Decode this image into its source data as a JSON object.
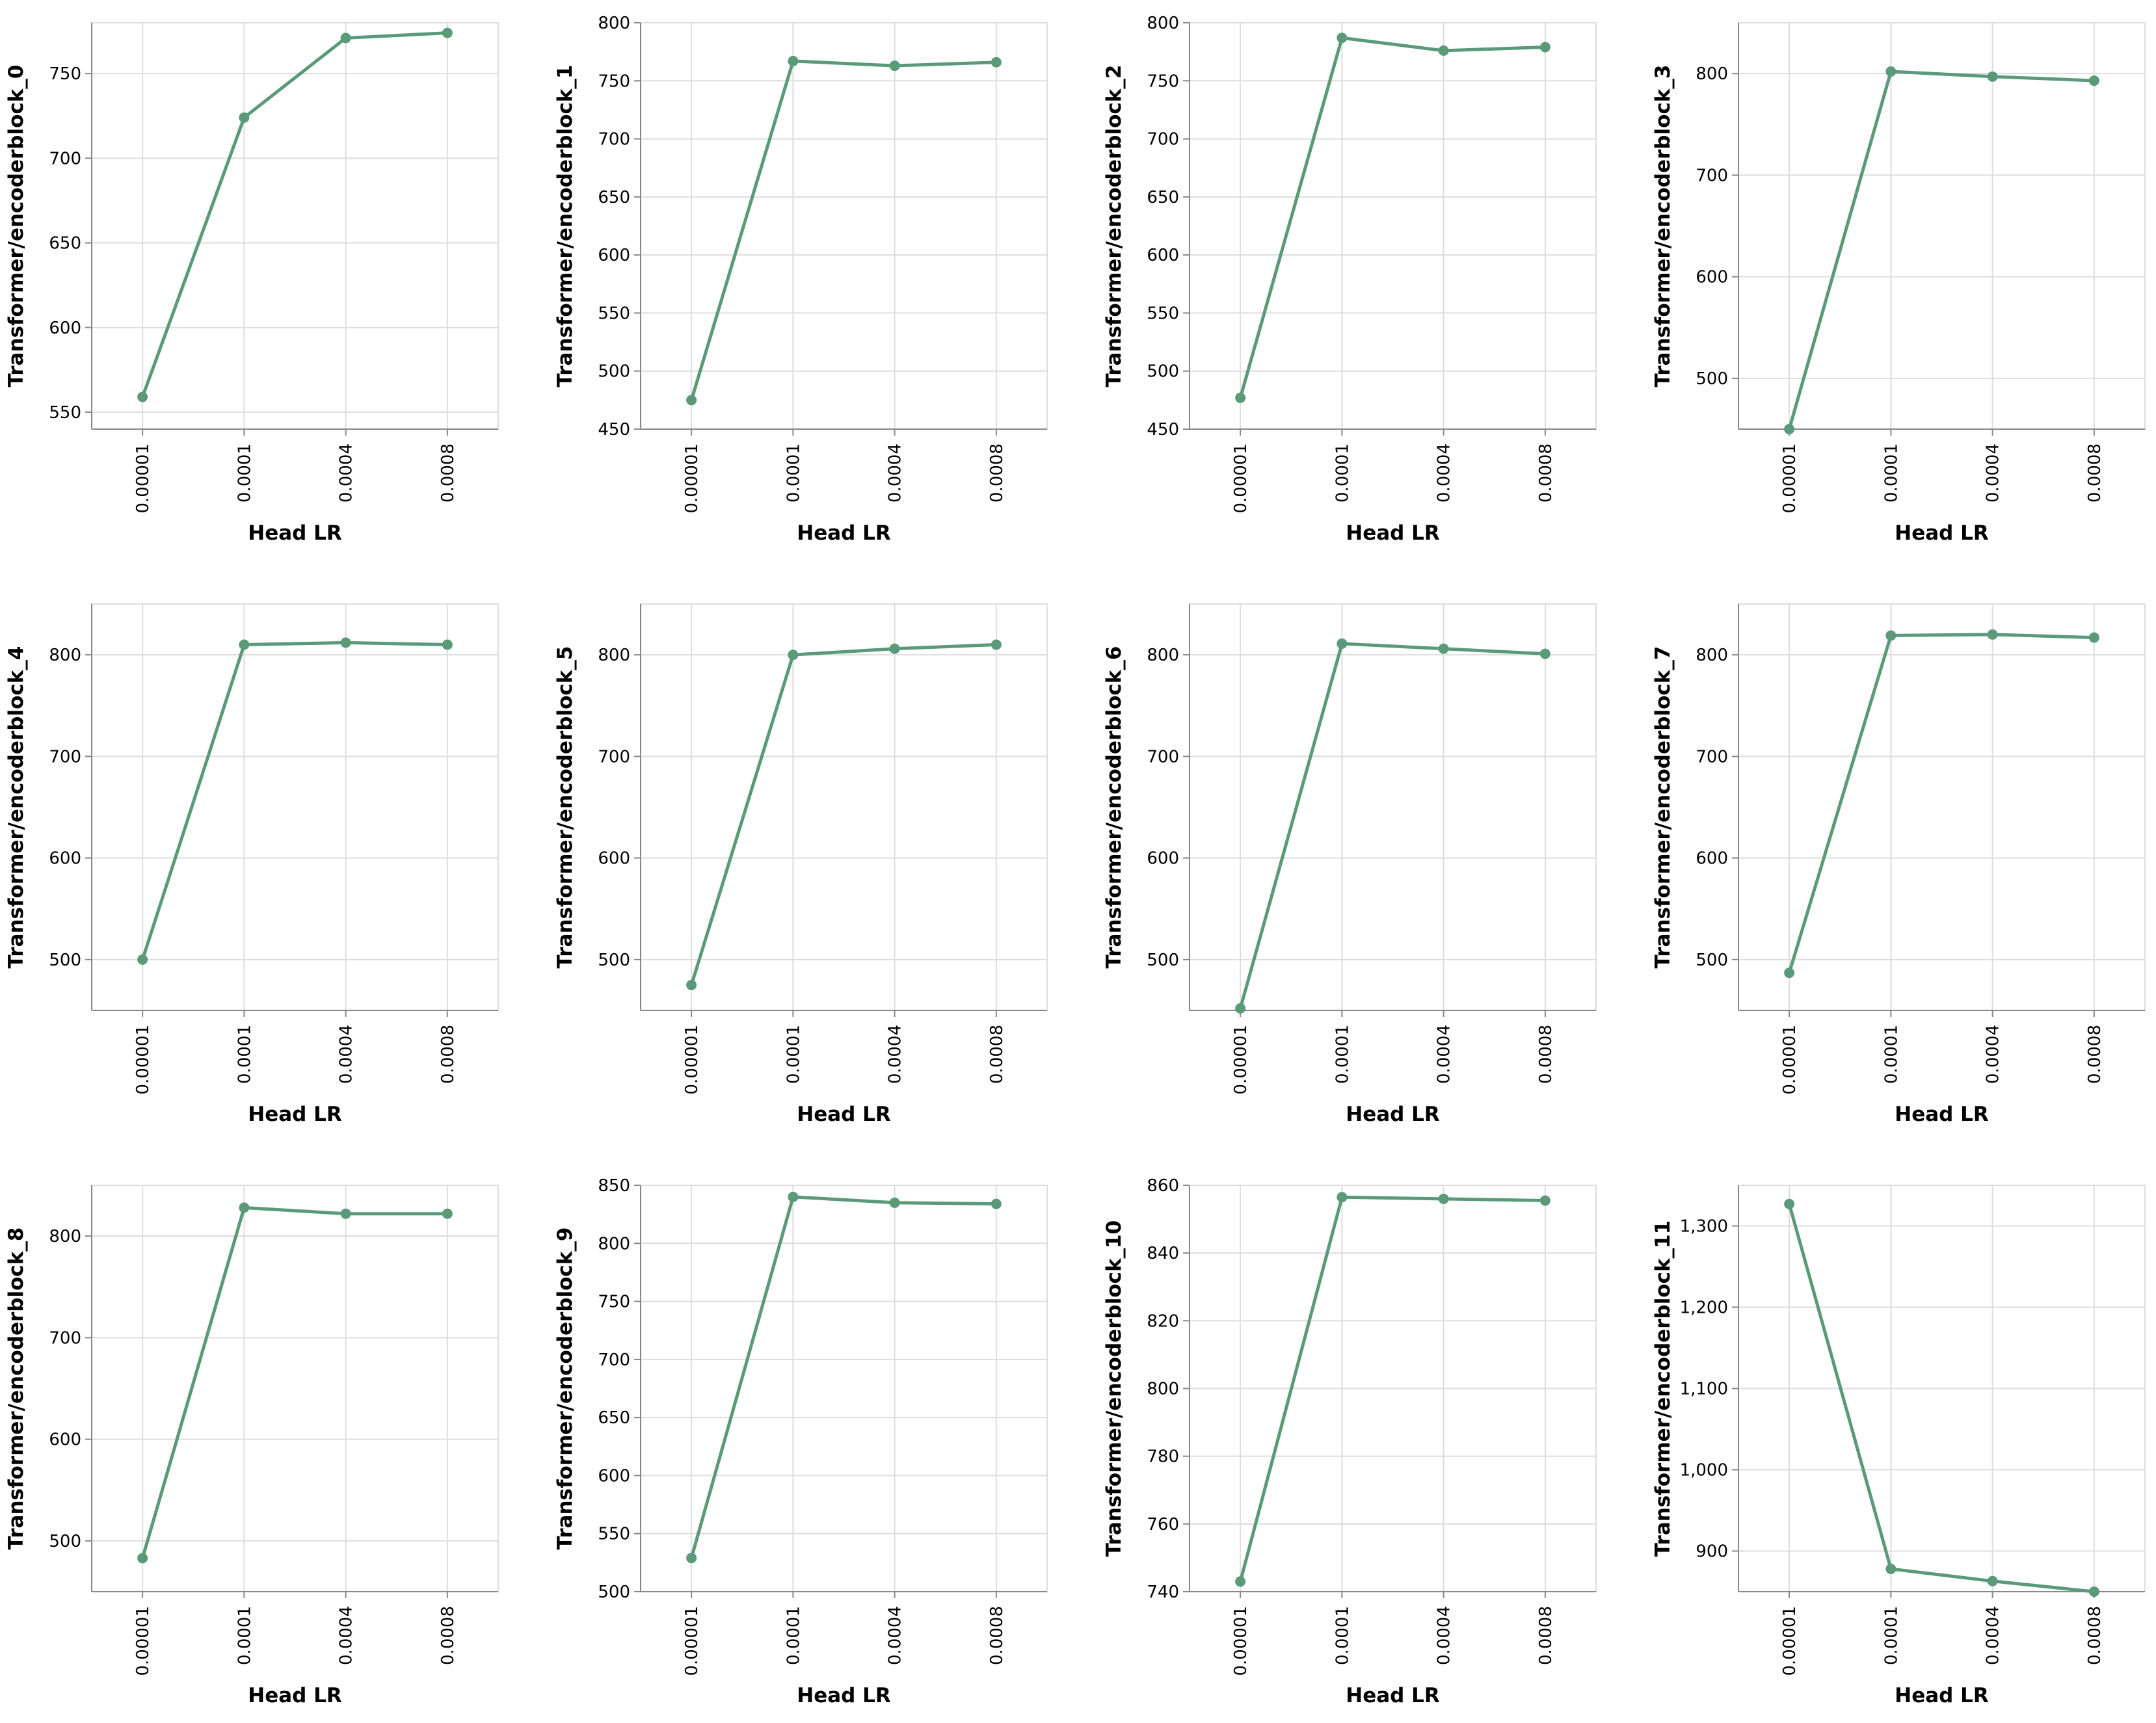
{
  "colors": {
    "line": "#5a9a78",
    "grid": "#dddddd",
    "axis": "#888888"
  },
  "chart_data": [
    {
      "type": "line",
      "title": "",
      "xlabel": "Head LR",
      "ylabel": "Transformer/encoderblock_0",
      "categories": [
        "0.00001",
        "0.0001",
        "0.0004",
        "0.0008"
      ],
      "values": [
        559,
        724,
        771,
        774
      ],
      "ylim": [
        540,
        780
      ],
      "yticks": [
        550,
        600,
        650,
        700,
        750
      ],
      "ytick_labels": [
        "550",
        "600",
        "650",
        "700",
        "750"
      ]
    },
    {
      "type": "line",
      "title": "",
      "xlabel": "Head LR",
      "ylabel": "Transformer/encoderblock_1",
      "categories": [
        "0.00001",
        "0.0001",
        "0.0004",
        "0.0008"
      ],
      "values": [
        475,
        767,
        763,
        766
      ],
      "ylim": [
        450,
        800
      ],
      "yticks": [
        450,
        500,
        550,
        600,
        650,
        700,
        750,
        800
      ],
      "ytick_labels": [
        "450",
        "500",
        "550",
        "600",
        "650",
        "700",
        "750",
        "800"
      ]
    },
    {
      "type": "line",
      "title": "",
      "xlabel": "Head LR",
      "ylabel": "Transformer/encoderblock_2",
      "categories": [
        "0.00001",
        "0.0001",
        "0.0004",
        "0.0008"
      ],
      "values": [
        477,
        787,
        776,
        779
      ],
      "ylim": [
        450,
        800
      ],
      "yticks": [
        450,
        500,
        550,
        600,
        650,
        700,
        750,
        800
      ],
      "ytick_labels": [
        "450",
        "500",
        "550",
        "600",
        "650",
        "700",
        "750",
        "800"
      ]
    },
    {
      "type": "line",
      "title": "",
      "xlabel": "Head LR",
      "ylabel": "Transformer/encoderblock_3",
      "categories": [
        "0.00001",
        "0.0001",
        "0.0004",
        "0.0008"
      ],
      "values": [
        450,
        802,
        797,
        793
      ],
      "ylim": [
        450,
        850
      ],
      "yticks": [
        500,
        600,
        700,
        800
      ],
      "ytick_labels": [
        "500",
        "600",
        "700",
        "800"
      ]
    },
    {
      "type": "line",
      "title": "",
      "xlabel": "Head LR",
      "ylabel": "Transformer/encoderblock_4",
      "categories": [
        "0.00001",
        "0.0001",
        "0.0004",
        "0.0008"
      ],
      "values": [
        500,
        810,
        812,
        810
      ],
      "ylim": [
        450,
        850
      ],
      "yticks": [
        500,
        600,
        700,
        800
      ],
      "ytick_labels": [
        "500",
        "600",
        "700",
        "800"
      ]
    },
    {
      "type": "line",
      "title": "",
      "xlabel": "Head LR",
      "ylabel": "Transformer/encoderblock_5",
      "categories": [
        "0.00001",
        "0.0001",
        "0.0004",
        "0.0008"
      ],
      "values": [
        475,
        800,
        806,
        810
      ],
      "ylim": [
        450,
        850
      ],
      "yticks": [
        500,
        600,
        700,
        800
      ],
      "ytick_labels": [
        "500",
        "600",
        "700",
        "800"
      ]
    },
    {
      "type": "line",
      "title": "",
      "xlabel": "Head LR",
      "ylabel": "Transformer/encoderblock_6",
      "categories": [
        "0.00001",
        "0.0001",
        "0.0004",
        "0.0008"
      ],
      "values": [
        452,
        811,
        806,
        801
      ],
      "ylim": [
        450,
        850
      ],
      "yticks": [
        500,
        600,
        700,
        800
      ],
      "ytick_labels": [
        "500",
        "600",
        "700",
        "800"
      ]
    },
    {
      "type": "line",
      "title": "",
      "xlabel": "Head LR",
      "ylabel": "Transformer/encoderblock_7",
      "categories": [
        "0.00001",
        "0.0001",
        "0.0004",
        "0.0008"
      ],
      "values": [
        487,
        819,
        820,
        817
      ],
      "ylim": [
        450,
        850
      ],
      "yticks": [
        500,
        600,
        700,
        800
      ],
      "ytick_labels": [
        "500",
        "600",
        "700",
        "800"
      ]
    },
    {
      "type": "line",
      "title": "",
      "xlabel": "Head LR",
      "ylabel": "Transformer/encoderblock_8",
      "categories": [
        "0.00001",
        "0.0001",
        "0.0004",
        "0.0008"
      ],
      "values": [
        483,
        828,
        822,
        822
      ],
      "ylim": [
        450,
        850
      ],
      "yticks": [
        500,
        600,
        700,
        800
      ],
      "ytick_labels": [
        "500",
        "600",
        "700",
        "800"
      ]
    },
    {
      "type": "line",
      "title": "",
      "xlabel": "Head LR",
      "ylabel": "Transformer/encoderblock_9",
      "categories": [
        "0.00001",
        "0.0001",
        "0.0004",
        "0.0008"
      ],
      "values": [
        529,
        840,
        835,
        834
      ],
      "ylim": [
        500,
        850
      ],
      "yticks": [
        500,
        550,
        600,
        650,
        700,
        750,
        800,
        850
      ],
      "ytick_labels": [
        "500",
        "550",
        "600",
        "650",
        "700",
        "750",
        "800",
        "850"
      ]
    },
    {
      "type": "line",
      "title": "",
      "xlabel": "Head LR",
      "ylabel": "Transformer/encoderblock_10",
      "categories": [
        "0.00001",
        "0.0001",
        "0.0004",
        "0.0008"
      ],
      "values": [
        743,
        856.5,
        856,
        855.5
      ],
      "ylim": [
        740,
        860
      ],
      "yticks": [
        740,
        760,
        780,
        800,
        820,
        840,
        860
      ],
      "ytick_labels": [
        "740",
        "760",
        "780",
        "800",
        "820",
        "840",
        "860"
      ]
    },
    {
      "type": "line",
      "title": "",
      "xlabel": "Head LR",
      "ylabel": "Transformer/encoderblock_11",
      "categories": [
        "0.00001",
        "0.0001",
        "0.0004",
        "0.0008"
      ],
      "values": [
        1327,
        878,
        863,
        850
      ],
      "ylim": [
        850,
        1350
      ],
      "yticks": [
        900,
        1000,
        1100,
        1200,
        1300
      ],
      "ytick_labels": [
        "900",
        "1,000",
        "1,100",
        "1,200",
        "1,300"
      ]
    }
  ]
}
